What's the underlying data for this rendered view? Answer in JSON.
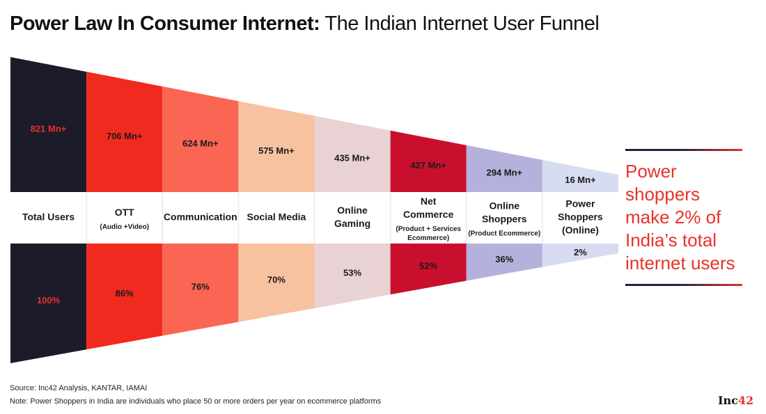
{
  "title": {
    "bold": "Power Law In Consumer Internet:",
    "light": "The Indian Internet User Funnel"
  },
  "chart_data": {
    "type": "funnel",
    "categories": [
      {
        "name": "Total Users",
        "sub": [],
        "users": "821 Mn+",
        "share": "100%",
        "users_mn": 821,
        "share_pct": 100,
        "color": "#1c1b29",
        "label_color": "#e8322a",
        "value_color": "#e8322a"
      },
      {
        "name": "OTT",
        "sub": [
          "(Audio +Video)"
        ],
        "users": "706 Mn+",
        "share": "86%",
        "users_mn": 706,
        "share_pct": 86,
        "color": "#f02a1e",
        "label_color": "#1a1a1a",
        "value_color": "#1a1a1a"
      },
      {
        "name": "Communication",
        "sub": [],
        "users": "624 Mn+",
        "share": "76%",
        "users_mn": 624,
        "share_pct": 76,
        "color": "#fb6553",
        "label_color": "#1a1a1a",
        "value_color": "#1a1a1a"
      },
      {
        "name": "Social Media",
        "sub": [],
        "users": "575 Mn+",
        "share": "70%",
        "users_mn": 575,
        "share_pct": 70,
        "color": "#f7c2a0",
        "label_color": "#1a1a1a",
        "value_color": "#1a1a1a"
      },
      {
        "name": "Online Gaming",
        "sub": [],
        "users": "435 Mn+",
        "share": "53%",
        "users_mn": 435,
        "share_pct": 53,
        "color": "#e8d2d3",
        "label_color": "#1a1a1a",
        "value_color": "#1a1a1a"
      },
      {
        "name": "Net Commerce",
        "sub": [
          "(Product + Services",
          "Ecommerce)"
        ],
        "users": "427 Mn+",
        "share": "52%",
        "users_mn": 427,
        "share_pct": 52,
        "color": "#c8102e",
        "label_color": "#1a1a1a",
        "value_color": "#1a1a1a"
      },
      {
        "name": "Online Shoppers",
        "sub": [
          "(Product Ecommerce)"
        ],
        "users": "294 Mn+",
        "share": "36%",
        "users_mn": 294,
        "share_pct": 36,
        "color": "#b4b2dc",
        "label_color": "#1a1a1a",
        "value_color": "#1a1a1a"
      },
      {
        "name": "Power Shoppers (Online)",
        "sub": [],
        "users": "16 Mn+",
        "share": "2%",
        "users_mn": 16,
        "share_pct": 2,
        "color": "#d7dcf1",
        "label_color": "#e8322a",
        "value_color": "#1a1a1a"
      }
    ]
  },
  "callout": {
    "text": "Power shoppers make 2% of India’s total internet users"
  },
  "footer": {
    "source": "Source: Inc42 Analysis, KANTAR, IAMAI",
    "note": "Note: Power Shoppers in India are individuals who place 50 or more orders per year on ecommerce platforms",
    "logo_text": "Inc",
    "logo_num": "42"
  }
}
